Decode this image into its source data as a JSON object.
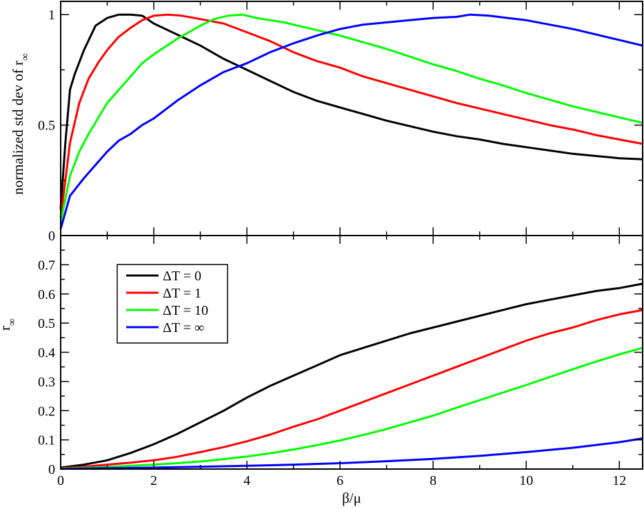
{
  "chart_data": [
    {
      "type": "line",
      "ylabel_main": "normalized std dev of r",
      "ylabel_sub": "∞",
      "xlabel": "",
      "xlim": [
        0,
        12.5
      ],
      "ylim": [
        0,
        1.06
      ],
      "yticks": [
        0,
        0.5,
        1
      ],
      "ytick_labels": [
        "0",
        "0.5",
        "1"
      ],
      "xticks": [
        0,
        2,
        4,
        6,
        8,
        10,
        12
      ],
      "grid": false,
      "series": [
        {
          "name": "ΔT = 0",
          "color": "#000000",
          "x": [
            0,
            0.1,
            0.2,
            0.3,
            0.5,
            0.75,
            1.0,
            1.25,
            1.5,
            1.75,
            2.0,
            2.5,
            3.0,
            3.5,
            4.0,
            4.5,
            5.0,
            5.5,
            6.0,
            6.5,
            7.0,
            7.5,
            8.0,
            8.5,
            9.0,
            9.5,
            10.0,
            10.5,
            11.0,
            11.5,
            12.0,
            12.5
          ],
          "y": [
            0.12,
            0.42,
            0.66,
            0.73,
            0.84,
            0.95,
            0.985,
            1.0,
            1.0,
            0.995,
            0.96,
            0.91,
            0.86,
            0.8,
            0.75,
            0.7,
            0.65,
            0.61,
            0.58,
            0.55,
            0.52,
            0.495,
            0.47,
            0.45,
            0.435,
            0.415,
            0.4,
            0.385,
            0.37,
            0.36,
            0.35,
            0.345
          ]
        },
        {
          "name": "ΔT = 1",
          "color": "#ff0000",
          "x": [
            0,
            0.1,
            0.2,
            0.4,
            0.6,
            0.8,
            1.0,
            1.25,
            1.5,
            1.75,
            2.0,
            2.3,
            2.6,
            3.0,
            3.5,
            4.0,
            4.5,
            5.0,
            5.5,
            6.0,
            6.5,
            7.0,
            7.5,
            8.0,
            8.5,
            9.0,
            9.5,
            10.0,
            10.5,
            11.0,
            11.5,
            12.0,
            12.5
          ],
          "y": [
            0.08,
            0.25,
            0.42,
            0.6,
            0.71,
            0.78,
            0.84,
            0.9,
            0.94,
            0.975,
            0.995,
            1.0,
            0.995,
            0.98,
            0.96,
            0.92,
            0.88,
            0.83,
            0.79,
            0.76,
            0.72,
            0.69,
            0.66,
            0.63,
            0.6,
            0.575,
            0.55,
            0.525,
            0.5,
            0.48,
            0.455,
            0.435,
            0.415
          ]
        },
        {
          "name": "ΔT = 10",
          "color": "#00ff00",
          "x": [
            0,
            0.2,
            0.4,
            0.6,
            0.8,
            1.0,
            1.25,
            1.5,
            1.75,
            2.0,
            2.5,
            3.0,
            3.3,
            3.6,
            3.9,
            4.2,
            4.5,
            4.8,
            5.2,
            5.6,
            6.0,
            6.5,
            7.0,
            7.5,
            8.0,
            8.5,
            9.0,
            9.5,
            10.0,
            10.5,
            11.0,
            11.5,
            12.0,
            12.5
          ],
          "y": [
            0.06,
            0.27,
            0.38,
            0.46,
            0.53,
            0.6,
            0.66,
            0.72,
            0.78,
            0.82,
            0.89,
            0.95,
            0.98,
            0.995,
            1.0,
            0.985,
            0.975,
            0.965,
            0.945,
            0.925,
            0.905,
            0.875,
            0.845,
            0.81,
            0.775,
            0.745,
            0.71,
            0.68,
            0.645,
            0.615,
            0.585,
            0.56,
            0.535,
            0.51
          ]
        },
        {
          "name": "ΔT = ∞",
          "color": "#0000ff",
          "x": [
            0,
            0.2,
            0.5,
            0.75,
            1.0,
            1.25,
            1.5,
            1.75,
            2.0,
            2.5,
            3.0,
            3.5,
            4.0,
            4.5,
            5.0,
            5.5,
            6.0,
            6.5,
            7.0,
            7.5,
            8.0,
            8.5,
            8.8,
            9.2,
            9.6,
            10.0,
            10.5,
            11.0,
            11.5,
            12.0,
            12.5
          ],
          "y": [
            0.03,
            0.18,
            0.26,
            0.32,
            0.38,
            0.43,
            0.46,
            0.5,
            0.53,
            0.61,
            0.68,
            0.74,
            0.78,
            0.83,
            0.87,
            0.905,
            0.935,
            0.955,
            0.965,
            0.975,
            0.985,
            0.99,
            1.0,
            0.995,
            0.985,
            0.975,
            0.955,
            0.935,
            0.91,
            0.885,
            0.86
          ]
        }
      ]
    },
    {
      "type": "line",
      "ylabel_main": "r",
      "ylabel_sub": "∞",
      "xlabel": "β/μ",
      "xlim": [
        0,
        12.5
      ],
      "ylim": [
        0,
        0.8
      ],
      "yticks": [
        0,
        0.1,
        0.2,
        0.3,
        0.4,
        0.5,
        0.6,
        0.7
      ],
      "ytick_labels": [
        "0",
        "0.1",
        "0.2",
        "0.3",
        "0.4",
        "0.5",
        "0.6",
        "0.7"
      ],
      "xticks": [
        0,
        2,
        4,
        6,
        8,
        10,
        12
      ],
      "xtick_labels": [
        "0",
        "2",
        "4",
        "6",
        "8",
        "10",
        "12"
      ],
      "grid": false,
      "legend_position": "top-left",
      "series": [
        {
          "name": "ΔT = 0",
          "color": "#000000",
          "x": [
            0,
            0.5,
            1.0,
            1.5,
            2.0,
            2.5,
            3.0,
            3.5,
            4.0,
            4.5,
            5.0,
            5.5,
            6.0,
            6.5,
            7.0,
            7.5,
            8.0,
            8.5,
            9.0,
            9.5,
            10.0,
            10.5,
            11.0,
            11.5,
            12.0,
            12.5
          ],
          "y": [
            0.005,
            0.015,
            0.03,
            0.055,
            0.085,
            0.12,
            0.16,
            0.2,
            0.245,
            0.285,
            0.32,
            0.355,
            0.39,
            0.415,
            0.44,
            0.465,
            0.485,
            0.505,
            0.525,
            0.545,
            0.565,
            0.58,
            0.595,
            0.61,
            0.62,
            0.635
          ]
        },
        {
          "name": "ΔT = 1",
          "color": "#ff0000",
          "x": [
            0,
            0.5,
            1.0,
            1.5,
            2.0,
            2.5,
            3.0,
            3.5,
            4.0,
            4.5,
            5.0,
            5.5,
            6.0,
            6.5,
            7.0,
            7.5,
            8.0,
            8.5,
            9.0,
            9.5,
            10.0,
            10.5,
            11.0,
            11.5,
            12.0,
            12.5
          ],
          "y": [
            0.003,
            0.008,
            0.015,
            0.022,
            0.03,
            0.042,
            0.058,
            0.075,
            0.095,
            0.118,
            0.145,
            0.17,
            0.2,
            0.23,
            0.26,
            0.29,
            0.32,
            0.35,
            0.38,
            0.41,
            0.44,
            0.465,
            0.485,
            0.51,
            0.53,
            0.545
          ]
        },
        {
          "name": "ΔT = 10",
          "color": "#00ff00",
          "x": [
            0,
            0.5,
            1.0,
            1.5,
            2.0,
            2.5,
            3.0,
            3.5,
            4.0,
            4.5,
            5.0,
            5.5,
            6.0,
            6.5,
            7.0,
            7.5,
            8.0,
            8.5,
            9.0,
            9.5,
            10.0,
            10.5,
            11.0,
            11.5,
            12.0,
            12.5
          ],
          "y": [
            0.002,
            0.004,
            0.007,
            0.011,
            0.015,
            0.02,
            0.026,
            0.034,
            0.043,
            0.054,
            0.067,
            0.082,
            0.098,
            0.117,
            0.137,
            0.16,
            0.183,
            0.21,
            0.236,
            0.262,
            0.288,
            0.315,
            0.342,
            0.368,
            0.393,
            0.415
          ]
        },
        {
          "name": "ΔT = ∞",
          "color": "#0000ff",
          "x": [
            0,
            1,
            2,
            3,
            4,
            5,
            6,
            7,
            8,
            9,
            10,
            11,
            12,
            12.5
          ],
          "y": [
            0.001,
            0.003,
            0.005,
            0.008,
            0.011,
            0.015,
            0.02,
            0.027,
            0.035,
            0.045,
            0.058,
            0.073,
            0.092,
            0.105
          ]
        }
      ],
      "legend_entries": [
        "ΔT = 0",
        "ΔT = 1",
        "ΔT = 10",
        "ΔT = ∞"
      ]
    }
  ]
}
